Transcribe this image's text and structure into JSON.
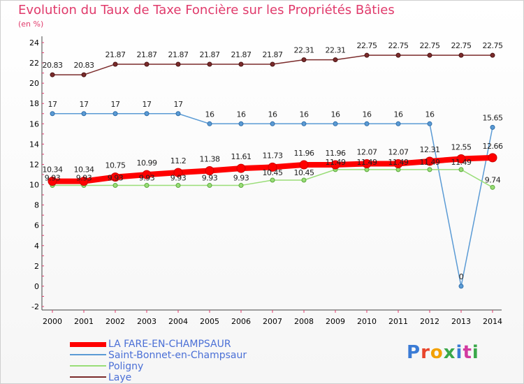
{
  "title": "Evolution du Taux de Taxe Foncière sur les Propriétés Bâties",
  "unit": "(en %)",
  "chart_data": {
    "type": "line",
    "title": "Evolution du Taux de Taxe Foncière sur les Propriétés Bâties",
    "ylabel": "(en %)",
    "xlabel": "",
    "x": [
      "2000",
      "2001",
      "2002",
      "2003",
      "2004",
      "2005",
      "2006",
      "2007",
      "2008",
      "2009",
      "2010",
      "2011",
      "2012",
      "2013",
      "2014"
    ],
    "ylim": [
      -2,
      24
    ],
    "yticks": [
      "-2",
      "0",
      "2",
      "4",
      "6",
      "8",
      "10",
      "12",
      "14",
      "16",
      "18",
      "20",
      "22",
      "24"
    ],
    "grid": false,
    "legend_position": "bottom-left",
    "series": [
      {
        "name": "LA FARE-EN-CHAMPSAUR",
        "color": "#ff0000",
        "values": [
          10.34,
          10.34,
          10.75,
          10.99,
          11.2,
          11.38,
          11.61,
          11.73,
          11.96,
          11.96,
          12.07,
          12.07,
          12.31,
          12.55,
          12.66
        ],
        "labels": [
          "10.34",
          "10.34",
          "10.75",
          "10.99",
          "11.2",
          "11.38",
          "11.61",
          "11.73",
          "11.96",
          "11.96",
          "12.07",
          "12.07",
          "12.31",
          "12.55",
          "12.66"
        ]
      },
      {
        "name": "Saint-Bonnet-en-Champsaur",
        "color": "#5b9bd5",
        "values": [
          17,
          17,
          17,
          17,
          17,
          16,
          16,
          16,
          16,
          16,
          16,
          16,
          16,
          0,
          15.65
        ],
        "labels": [
          "17",
          "17",
          "17",
          "17",
          "17",
          "16",
          "16",
          "16",
          "16",
          "16",
          "16",
          "16",
          "16",
          "0",
          "15.65"
        ]
      },
      {
        "name": "Poligny",
        "color": "#99dd77",
        "values": [
          9.93,
          9.93,
          9.93,
          9.93,
          9.93,
          9.93,
          9.93,
          10.45,
          10.45,
          11.49,
          11.49,
          11.49,
          11.49,
          11.49,
          9.74
        ],
        "labels": [
          "9.93",
          "9.93",
          "9.93",
          "9.93",
          "9.93",
          "9.93",
          "9.93",
          "10.45",
          "10.45",
          "11.49",
          "11.49",
          "11.49",
          "11.49",
          "11.49",
          "9.74"
        ]
      },
      {
        "name": "Laye",
        "color": "#7b2b2b",
        "values": [
          20.83,
          20.83,
          21.87,
          21.87,
          21.87,
          21.87,
          21.87,
          21.87,
          22.31,
          22.31,
          22.75,
          22.75,
          22.75,
          22.75,
          22.75
        ],
        "labels": [
          "20.83",
          "20.83",
          "21.87",
          "21.87",
          "21.87",
          "21.87",
          "21.87",
          "21.87",
          "22.31",
          "22.31",
          "22.75",
          "22.75",
          "22.75",
          "22.75",
          "22.75"
        ]
      }
    ]
  },
  "legend": [
    {
      "label": "LA FARE-EN-CHAMPSAUR",
      "color": "#ff0000"
    },
    {
      "label": "Saint-Bonnet-en-Champsaur",
      "color": "#5b9bd5"
    },
    {
      "label": "Poligny",
      "color": "#99dd77"
    },
    {
      "label": "Laye",
      "color": "#7b2b2b"
    }
  ],
  "logo": {
    "text": "Proxiti",
    "colors": [
      "#3a7bd5",
      "#e8452c",
      "#f2a100",
      "#3aa84a",
      "#3a7bd5",
      "#d23aa0",
      "#3aa84a"
    ]
  }
}
